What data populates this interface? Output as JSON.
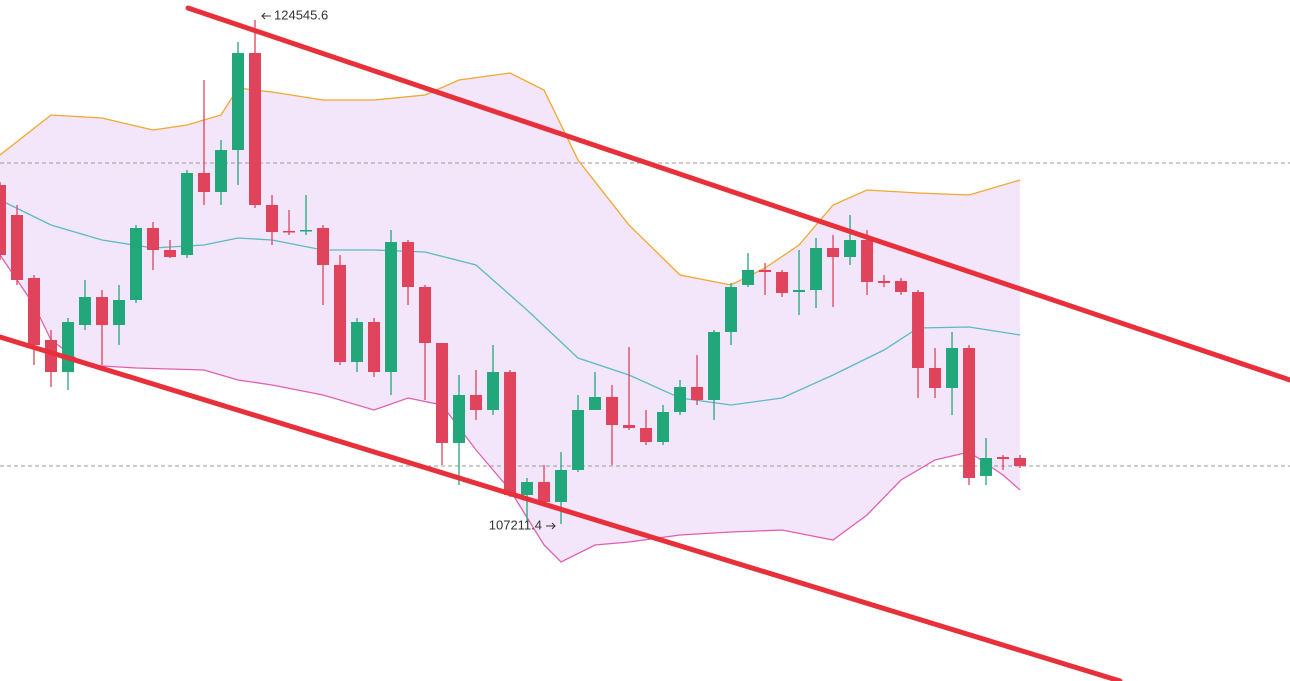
{
  "chart_data": {
    "type": "candlestick",
    "xlim": [
      0,
      75.88
    ],
    "ylim": [
      101813,
      125233
    ],
    "up_color": "#22a77b",
    "down_color": "#e0435c",
    "open": [
      118871,
      117839,
      115673,
      113540,
      112440,
      114056,
      115019,
      114056,
      114916,
      117392,
      116635,
      116463,
      119284,
      118630,
      120074,
      123410,
      118183,
      117289,
      117289,
      117392,
      116120,
      112784,
      114159,
      112440,
      116910,
      115363,
      113437,
      109998,
      111649,
      111133,
      112440,
      108210,
      108657,
      107969,
      109070,
      111133,
      111580,
      110617,
      110514,
      110032,
      111064,
      111924,
      111477,
      113815,
      115432,
      115948,
      115879,
      115191,
      115260,
      116704,
      116394,
      116979,
      115570,
      115570,
      115191,
      112578,
      111890,
      113265,
      108864,
      109516,
      109482
    ],
    "high": [
      118974,
      118183,
      115776,
      113884,
      114297,
      115604,
      115260,
      115432,
      117495,
      117598,
      116979,
      119387,
      122482,
      120418,
      123788,
      124545.6,
      118527,
      118011,
      118527,
      117495,
      116463,
      114297,
      114297,
      117323,
      116979,
      115432,
      113437,
      112337,
      112509,
      113368,
      112509,
      108795,
      109242,
      109688,
      111649,
      112440,
      111993,
      113299,
      111133,
      111305,
      112165,
      113024,
      113884,
      115501,
      116532,
      116189,
      115948,
      116635,
      117048,
      117151,
      117839,
      117323,
      115776,
      115673,
      115260,
      113265,
      113815,
      113368,
      110170,
      109585,
      109585
    ],
    "low": [
      116292,
      115432,
      112681,
      111924,
      111821,
      113884,
      112681,
      113368,
      114813,
      115948,
      116360,
      116360,
      118183,
      118183,
      118871,
      118080,
      116807,
      117151,
      117151,
      114744,
      112681,
      112440,
      112268,
      111649,
      114744,
      111477,
      109242,
      108554,
      110789,
      110961,
      108141,
      107281,
      107866,
      107211.4,
      109001,
      111133,
      109242,
      110445,
      109929,
      109929,
      110961,
      111305,
      110789,
      113368,
      115363,
      115088,
      115019,
      114400,
      114641,
      114675,
      116120,
      115088,
      115363,
      115088,
      111546,
      111546,
      110961,
      108554,
      108554,
      109070,
      109139
    ],
    "close": [
      116463,
      115604,
      113368,
      112440,
      114159,
      115019,
      114056,
      114916,
      117392,
      116635,
      116394,
      119284,
      118630,
      120074,
      123410,
      118183,
      117254,
      117254,
      117323,
      116120,
      112784,
      114159,
      112440,
      116910,
      115363,
      113437,
      109998,
      111649,
      111133,
      112440,
      108210,
      108657,
      107969,
      109070,
      111133,
      111580,
      110617,
      110514,
      110032,
      111064,
      111924,
      111477,
      113815,
      115363,
      115948,
      115879,
      115157,
      115260,
      116704,
      116394,
      116979,
      115535,
      115501,
      115191,
      112578,
      111890,
      113265,
      108795,
      109482,
      109447,
      109208
    ],
    "bands": [
      {
        "color": "#f0a830",
        "x": [
          0,
          3,
          6,
          9,
          11,
          13,
          14,
          16,
          19,
          22,
          25,
          27,
          30,
          32,
          34,
          37,
          40,
          43,
          45,
          47,
          49,
          51,
          54,
          57,
          60
        ],
        "values": [
          119902,
          121278,
          121175,
          120762,
          120934,
          121278,
          122207,
          122069,
          121794,
          121794,
          121966,
          122482,
          122723,
          122138,
          119731,
          117495,
          115776,
          115432,
          116017,
          116807,
          118183,
          118699,
          118596,
          118527,
          119043
        ]
      },
      {
        "color": "#5bbcc0",
        "x": [
          0,
          3,
          6,
          9,
          12,
          14,
          16,
          19,
          22,
          25,
          28,
          31,
          34,
          37,
          40,
          43,
          46,
          49,
          52,
          54,
          57,
          60
        ],
        "values": [
          118355,
          117495,
          116979,
          116704,
          116807,
          117048,
          116979,
          116635,
          116635,
          116566,
          116120,
          114572,
          112921,
          112337,
          111546,
          111305,
          111546,
          112337,
          113196,
          113953,
          113987,
          113712
        ]
      },
      {
        "color": "#e060b0",
        "x": [
          0,
          2,
          3,
          5,
          8,
          12,
          14,
          16,
          19,
          22,
          24,
          26,
          28,
          30,
          32,
          33,
          35,
          37,
          40,
          43,
          46,
          49,
          51,
          53,
          55,
          57,
          59,
          60
        ],
        "values": [
          116463,
          114744,
          113540,
          112681,
          112578,
          112509,
          112165,
          111993,
          111649,
          111133,
          111546,
          111305,
          109757,
          108382,
          106490,
          105906,
          106490,
          106593,
          106834,
          106937,
          107006,
          106662,
          107522,
          108726,
          109414,
          109688,
          108898,
          108382
        ]
      }
    ],
    "band_fill": "#f3e5fa",
    "trendlines": [
      {
        "color": "#e8303a",
        "x": [
          11.06,
          75.88
        ],
        "values": [
          124958,
          112165
        ]
      },
      {
        "color": "#e8303a",
        "x": [
          0,
          65.88
        ],
        "values": [
          113643,
          101813
        ]
      }
    ],
    "hlines": {
      "color": "#9a9a9a",
      "values": [
        119627,
        109207
      ]
    },
    "high_label": "124545.6",
    "low_label": "107211.4"
  }
}
